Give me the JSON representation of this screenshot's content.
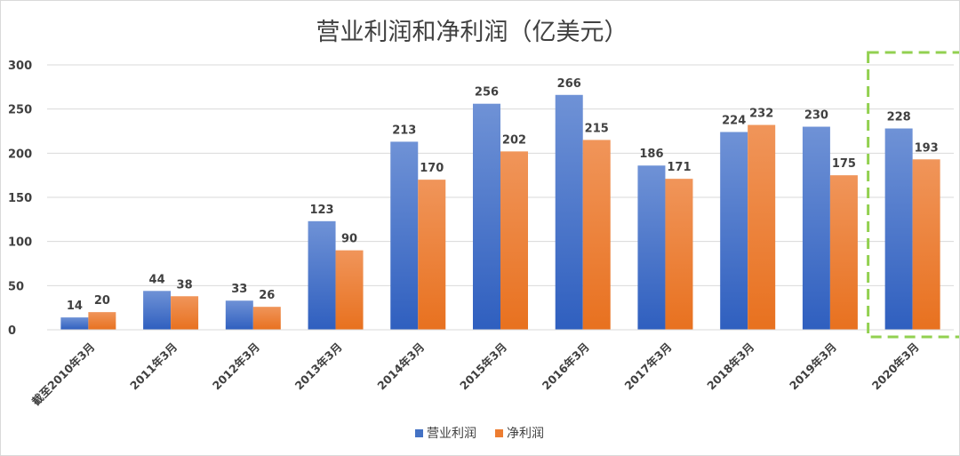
{
  "chart_data": {
    "type": "bar",
    "title": "营业利润和净利润（亿美元）",
    "categories": [
      "截至2010年3月",
      "2011年3月",
      "2012年3月",
      "2013年3月",
      "2014年3月",
      "2015年3月",
      "2016年3月",
      "2017年3月",
      "2018年3月",
      "2019年3月",
      "2020年3月"
    ],
    "series": [
      {
        "name": "营业利润",
        "color": "#4472c4",
        "values": [
          14,
          44,
          33,
          123,
          213,
          256,
          266,
          186,
          224,
          230,
          228
        ]
      },
      {
        "name": "净利润",
        "color": "#ed7d31",
        "values": [
          20,
          38,
          26,
          90,
          170,
          202,
          215,
          171,
          232,
          175,
          193
        ]
      }
    ],
    "yticks": [
      0,
      50,
      100,
      150,
      200,
      250,
      300
    ],
    "ylim": [
      0,
      300
    ],
    "grid": true,
    "legend_position": "bottom",
    "highlighted_category": "2020年3月",
    "highlight_color": "#92d050",
    "xlabel": "",
    "ylabel": ""
  }
}
